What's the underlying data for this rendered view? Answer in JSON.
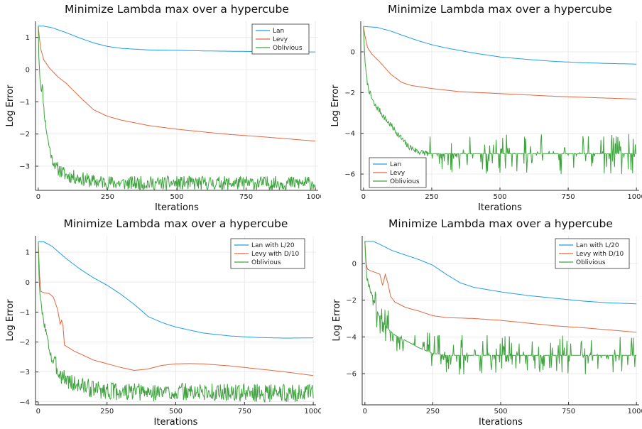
{
  "colors": {
    "lan": "#1f9ee8",
    "levy": "#e4673d",
    "oblivious": "#3fa33f",
    "grid": "#ebebeb",
    "axis": "#333333",
    "legend_border": "#333333"
  },
  "chart_data": [
    {
      "type": "line",
      "title": "Minimize Lambda max over a hypercube",
      "xlabel": "Iterations",
      "ylabel": "Log Error",
      "xlim": [
        -10,
        1010
      ],
      "ylim": [
        -3.75,
        1.5
      ],
      "xticks": [
        0,
        250,
        500,
        750,
        1000
      ],
      "yticks": [
        1,
        0,
        -1,
        -2,
        -3
      ],
      "grid": true,
      "legend_position": "top-right",
      "series": [
        {
          "name": "Lan",
          "color_key": "lan",
          "points": [
            [
              0,
              1.35
            ],
            [
              20,
              1.35
            ],
            [
              50,
              1.3
            ],
            [
              100,
              1.15
            ],
            [
              150,
              0.98
            ],
            [
              200,
              0.83
            ],
            [
              250,
              0.72
            ],
            [
              300,
              0.66
            ],
            [
              400,
              0.61
            ],
            [
              500,
              0.6
            ],
            [
              600,
              0.58
            ],
            [
              700,
              0.57
            ],
            [
              800,
              0.56
            ],
            [
              900,
              0.55
            ],
            [
              1000,
              0.55
            ]
          ]
        },
        {
          "name": "Levy",
          "color_key": "levy",
          "points": [
            [
              0,
              1.35
            ],
            [
              5,
              0.9
            ],
            [
              10,
              0.6
            ],
            [
              20,
              0.3
            ],
            [
              40,
              0.05
            ],
            [
              70,
              -0.22
            ],
            [
              100,
              -0.42
            ],
            [
              150,
              -0.85
            ],
            [
              200,
              -1.25
            ],
            [
              250,
              -1.45
            ],
            [
              300,
              -1.57
            ],
            [
              400,
              -1.74
            ],
            [
              500,
              -1.85
            ],
            [
              600,
              -1.94
            ],
            [
              700,
              -2.02
            ],
            [
              800,
              -2.08
            ],
            [
              900,
              -2.15
            ],
            [
              1000,
              -2.22
            ]
          ]
        },
        {
          "name": "Oblivious",
          "color_key": "oblivious",
          "noise": {
            "start": 70,
            "amp": 0.22,
            "seed": 11
          },
          "points": [
            [
              0,
              1.35
            ],
            [
              2,
              0.4
            ],
            [
              5,
              -0.1
            ],
            [
              10,
              -0.6
            ],
            [
              15,
              -0.5
            ],
            [
              20,
              -1.2
            ],
            [
              25,
              -1.6
            ],
            [
              35,
              -2.2
            ],
            [
              50,
              -2.8
            ],
            [
              70,
              -3.1
            ],
            [
              100,
              -3.3
            ],
            [
              150,
              -3.4
            ],
            [
              200,
              -3.5
            ],
            [
              300,
              -3.55
            ],
            [
              500,
              -3.55
            ],
            [
              700,
              -3.55
            ],
            [
              1000,
              -3.55
            ]
          ]
        }
      ]
    },
    {
      "type": "line",
      "title": "Minimize Lambda max over a hypercube",
      "xlabel": "Iterations",
      "ylabel": "Log Error",
      "xlim": [
        -10,
        1010
      ],
      "ylim": [
        -6.8,
        1.5
      ],
      "xticks": [
        0,
        250,
        500,
        750,
        1000
      ],
      "yticks": [
        0,
        -2,
        -4,
        -6
      ],
      "grid": true,
      "legend_position": "bottom-left",
      "series": [
        {
          "name": "Lan",
          "color_key": "lan",
          "points": [
            [
              0,
              1.25
            ],
            [
              50,
              1.2
            ],
            [
              100,
              1.02
            ],
            [
              150,
              0.78
            ],
            [
              200,
              0.55
            ],
            [
              250,
              0.35
            ],
            [
              300,
              0.2
            ],
            [
              400,
              -0.05
            ],
            [
              500,
              -0.25
            ],
            [
              600,
              -0.37
            ],
            [
              700,
              -0.47
            ],
            [
              800,
              -0.53
            ],
            [
              900,
              -0.57
            ],
            [
              1000,
              -0.6
            ]
          ]
        },
        {
          "name": "Levy",
          "color_key": "levy",
          "points": [
            [
              0,
              1.25
            ],
            [
              5,
              0.8
            ],
            [
              15,
              0.2
            ],
            [
              30,
              -0.1
            ],
            [
              60,
              -0.5
            ],
            [
              100,
              -1.1
            ],
            [
              140,
              -1.5
            ],
            [
              175,
              -1.65
            ],
            [
              250,
              -1.8
            ],
            [
              350,
              -1.95
            ],
            [
              500,
              -2.05
            ],
            [
              700,
              -2.18
            ],
            [
              850,
              -2.25
            ],
            [
              1000,
              -2.32
            ]
          ]
        },
        {
          "name": "Oblivious",
          "color_key": "oblivious",
          "noise": {
            "start": 240,
            "amp": 0.0,
            "spikes": 0.22,
            "spike_amp": 1.0,
            "seed": 7
          },
          "points": [
            [
              0,
              1.25
            ],
            [
              3,
              0.2
            ],
            [
              8,
              -0.9
            ],
            [
              15,
              -1.6
            ],
            [
              25,
              -2.1
            ],
            [
              40,
              -2.6
            ],
            [
              60,
              -2.9
            ],
            [
              80,
              -3.3
            ],
            [
              100,
              -3.6
            ],
            [
              130,
              -4.1
            ],
            [
              160,
              -4.6
            ],
            [
              200,
              -4.9
            ],
            [
              240,
              -5.0
            ],
            [
              1000,
              -5.0
            ]
          ]
        }
      ]
    },
    {
      "type": "line",
      "title": "Minimize Lambda max over a hypercube",
      "xlabel": "Iterations",
      "ylabel": "Log Error",
      "xlim": [
        -10,
        1010
      ],
      "ylim": [
        -4.1,
        1.55
      ],
      "xticks": [
        0,
        250,
        500,
        750,
        1000
      ],
      "yticks": [
        1,
        0,
        -1,
        -2,
        -3,
        -4
      ],
      "grid": true,
      "legend_position": "top-right",
      "series": [
        {
          "name": "Lan with L/20",
          "color_key": "lan",
          "points": [
            [
              0,
              1.35
            ],
            [
              20,
              1.35
            ],
            [
              50,
              1.2
            ],
            [
              100,
              0.8
            ],
            [
              150,
              0.45
            ],
            [
              200,
              0.15
            ],
            [
              250,
              -0.1
            ],
            [
              300,
              -0.4
            ],
            [
              350,
              -0.75
            ],
            [
              400,
              -1.15
            ],
            [
              450,
              -1.35
            ],
            [
              500,
              -1.5
            ],
            [
              600,
              -1.7
            ],
            [
              700,
              -1.8
            ],
            [
              800,
              -1.85
            ],
            [
              900,
              -1.87
            ],
            [
              1000,
              -1.86
            ]
          ]
        },
        {
          "name": "Levy with D/10",
          "color_key": "levy",
          "points": [
            [
              0,
              1.35
            ],
            [
              3,
              0.5
            ],
            [
              8,
              -0.3
            ],
            [
              20,
              -0.35
            ],
            [
              40,
              -0.38
            ],
            [
              55,
              -0.5
            ],
            [
              70,
              -0.9
            ],
            [
              80,
              -1.4
            ],
            [
              88,
              -1.2
            ],
            [
              95,
              -2.1
            ],
            [
              130,
              -2.3
            ],
            [
              200,
              -2.6
            ],
            [
              300,
              -2.85
            ],
            [
              350,
              -2.95
            ],
            [
              400,
              -2.9
            ],
            [
              450,
              -2.78
            ],
            [
              500,
              -2.73
            ],
            [
              550,
              -2.72
            ],
            [
              600,
              -2.73
            ],
            [
              700,
              -2.8
            ],
            [
              800,
              -2.9
            ],
            [
              900,
              -3.0
            ],
            [
              1000,
              -3.12
            ]
          ]
        },
        {
          "name": "Oblivious",
          "color_key": "oblivious",
          "noise": {
            "start": 40,
            "amp": 0.3,
            "seed": 3
          },
          "points": [
            [
              0,
              1.35
            ],
            [
              3,
              0.1
            ],
            [
              8,
              -0.6
            ],
            [
              15,
              -1.1
            ],
            [
              25,
              -1.5
            ],
            [
              35,
              -2.0
            ],
            [
              50,
              -2.6
            ],
            [
              80,
              -3.1
            ],
            [
              120,
              -3.4
            ],
            [
              200,
              -3.6
            ],
            [
              300,
              -3.7
            ],
            [
              400,
              -3.72
            ],
            [
              500,
              -3.7
            ],
            [
              700,
              -3.72
            ],
            [
              1000,
              -3.75
            ]
          ]
        }
      ]
    },
    {
      "type": "line",
      "title": "Minimize Lambda max over a hypercube",
      "xlabel": "Iterations",
      "ylabel": "Log Error",
      "xlim": [
        -10,
        1010
      ],
      "ylim": [
        -7.7,
        1.5
      ],
      "xticks": [
        0,
        250,
        500,
        750,
        1000
      ],
      "yticks": [
        0,
        -2,
        -4,
        -6
      ],
      "grid": true,
      "legend_position": "top-right",
      "series": [
        {
          "name": "Lan with L/20",
          "color_key": "lan",
          "points": [
            [
              0,
              1.2
            ],
            [
              30,
              1.2
            ],
            [
              60,
              1.0
            ],
            [
              100,
              0.7
            ],
            [
              150,
              0.45
            ],
            [
              200,
              0.2
            ],
            [
              250,
              -0.1
            ],
            [
              300,
              -0.6
            ],
            [
              350,
              -1.05
            ],
            [
              400,
              -1.3
            ],
            [
              500,
              -1.55
            ],
            [
              600,
              -1.75
            ],
            [
              700,
              -1.9
            ],
            [
              800,
              -2.05
            ],
            [
              900,
              -2.15
            ],
            [
              1000,
              -2.2
            ]
          ]
        },
        {
          "name": "Levy with D/10",
          "color_key": "levy",
          "points": [
            [
              0,
              1.2
            ],
            [
              3,
              0.1
            ],
            [
              8,
              -0.3
            ],
            [
              20,
              -0.4
            ],
            [
              40,
              -0.5
            ],
            [
              55,
              -0.6
            ],
            [
              65,
              -1.2
            ],
            [
              75,
              -0.6
            ],
            [
              85,
              -1.1
            ],
            [
              95,
              -1.8
            ],
            [
              110,
              -2.1
            ],
            [
              150,
              -2.4
            ],
            [
              200,
              -2.6
            ],
            [
              250,
              -2.85
            ],
            [
              300,
              -2.95
            ],
            [
              400,
              -3.0
            ],
            [
              500,
              -3.1
            ],
            [
              600,
              -3.25
            ],
            [
              700,
              -3.4
            ],
            [
              800,
              -3.5
            ],
            [
              900,
              -3.62
            ],
            [
              1000,
              -3.75
            ]
          ]
        },
        {
          "name": "Oblivious",
          "color_key": "oblivious",
          "noise": {
            "start": 30,
            "amp": 0.0,
            "spikes": 0.3,
            "spike_amp": 1.1,
            "seed": 19
          },
          "points": [
            [
              0,
              1.2
            ],
            [
              3,
              0.1
            ],
            [
              8,
              -0.8
            ],
            [
              15,
              -1.2
            ],
            [
              30,
              -1.9
            ],
            [
              50,
              -2.8
            ],
            [
              80,
              -3.5
            ],
            [
              110,
              -3.9
            ],
            [
              150,
              -4.2
            ],
            [
              200,
              -4.6
            ],
            [
              250,
              -4.9
            ],
            [
              300,
              -5.0
            ],
            [
              1000,
              -5.0
            ]
          ]
        }
      ]
    }
  ]
}
